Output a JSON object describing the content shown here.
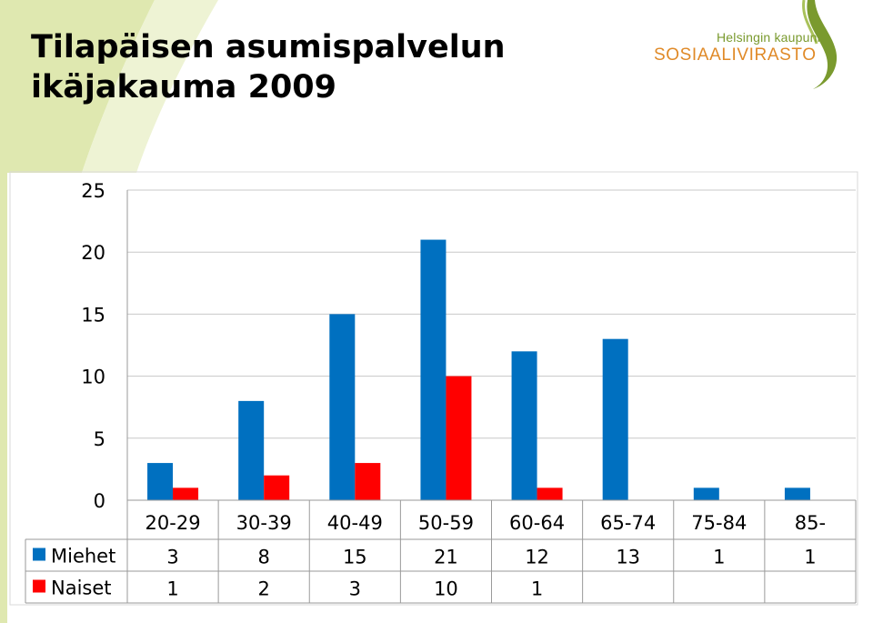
{
  "header": {
    "title_line1": "Tilapäisen asumispalvelun",
    "title_line2": "ikäjakauma 2009"
  },
  "logo": {
    "line1": "Helsingin kaupunki",
    "line2": "SOSIAALIVIRASTO",
    "colors": {
      "green": "#7a9a2e",
      "orange": "#e08a28"
    }
  },
  "chart_data": {
    "type": "bar",
    "categories": [
      "20-29",
      "30-39",
      "40-49",
      "50-59",
      "60-64",
      "65-74",
      "75-84",
      "85-"
    ],
    "series": [
      {
        "name": "Miehet",
        "color": "#0070c0",
        "values": [
          3,
          8,
          15,
          21,
          12,
          13,
          1,
          1
        ]
      },
      {
        "name": "Naiset",
        "color": "#ff0000",
        "values": [
          1,
          2,
          3,
          10,
          1,
          null,
          null,
          null
        ]
      }
    ],
    "ylim": [
      0,
      25
    ],
    "yticks": [
      0,
      5,
      10,
      15,
      20,
      25
    ],
    "grid": true,
    "legend": "data-table",
    "data_table": true
  }
}
